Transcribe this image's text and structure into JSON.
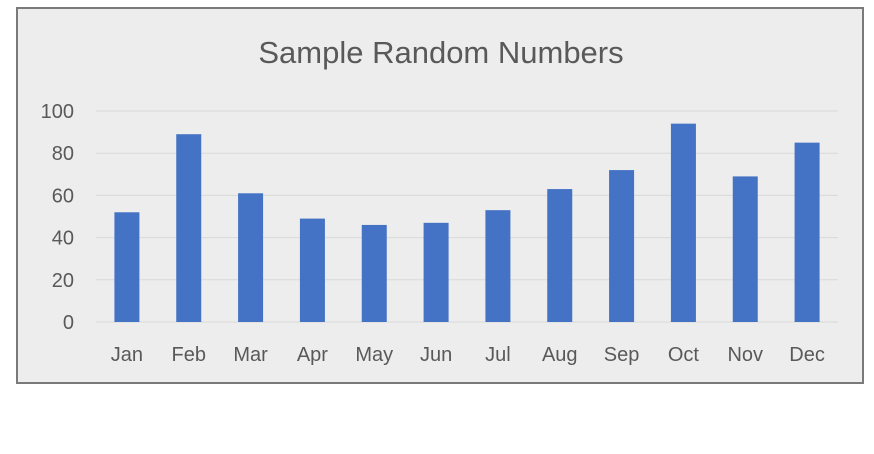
{
  "chart_data": {
    "type": "bar",
    "title": "Sample Random Numbers",
    "xlabel": "",
    "ylabel": "",
    "categories": [
      "Jan",
      "Feb",
      "Mar",
      "Apr",
      "May",
      "Jun",
      "Jul",
      "Aug",
      "Sep",
      "Oct",
      "Nov",
      "Dec"
    ],
    "values": [
      52,
      89,
      61,
      49,
      46,
      47,
      53,
      63,
      72,
      94,
      69,
      85
    ],
    "ylim": [
      0,
      100
    ],
    "yticks": [
      0,
      20,
      40,
      60,
      80,
      100
    ],
    "grid": true,
    "legend": "none",
    "colors": {
      "bar": "#4472c4",
      "background": "#ededed",
      "grid": "#d9d9d9",
      "text": "#595959"
    }
  }
}
